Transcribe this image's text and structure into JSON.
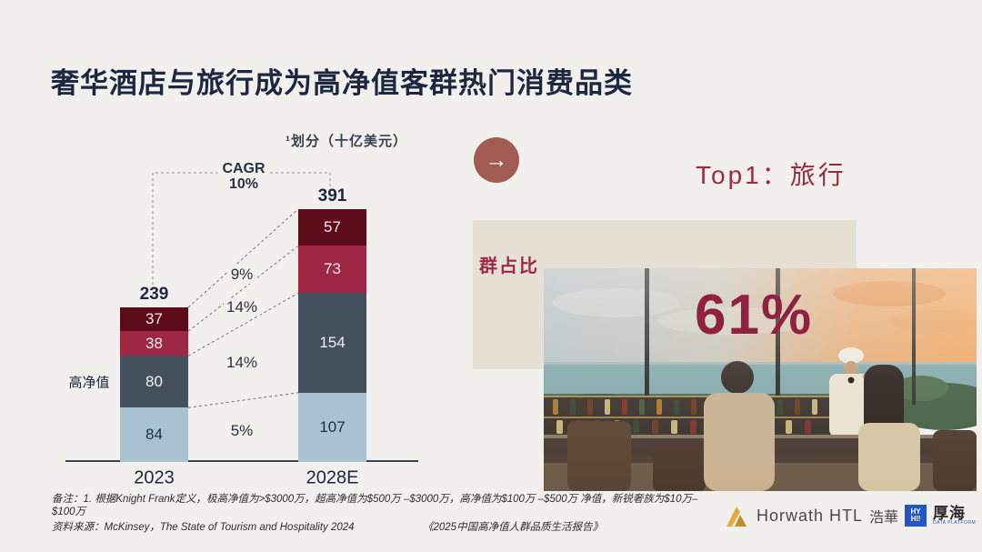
{
  "slide": {
    "title": "奢华酒店与旅行成为高净值客群热门消费品类"
  },
  "chart_data": {
    "type": "bar",
    "stacked": true,
    "subtitle": "¹划分（十亿美元）",
    "categories": [
      "2023",
      "2028E"
    ],
    "bar_totals": [
      "239",
      "391"
    ],
    "segments": [
      {
        "position": "top",
        "values": [
          37,
          57
        ],
        "color": "#5d0c1a",
        "text_color": "#f3e8e8"
      },
      {
        "position": "second",
        "values": [
          38,
          73
        ],
        "color": "#9e2746",
        "text_color": "#f6e9ec"
      },
      {
        "position": "third",
        "values": [
          80,
          154
        ],
        "color": "#45505f",
        "text_color": "#eef1f5"
      },
      {
        "position": "bottom",
        "values": [
          84,
          107
        ],
        "color": "#a8c2d1",
        "text_color": "#23303f"
      }
    ],
    "cagr": {
      "label": "CAGR",
      "overall": "10%",
      "per_segment": [
        "9%",
        "14%",
        "14%",
        "5%"
      ]
    },
    "side_label": "高净值",
    "ylim": [
      0,
      400
    ],
    "grid": false,
    "legend": "none"
  },
  "right_panel": {
    "arrow_icon": "→",
    "heading": "Top1：旅行",
    "metric_label": "群占比",
    "metric_value": "61%"
  },
  "footer": {
    "note_line1": "备注：1. 根据Knight Frank定义，极高净值为>$3000万，超高净值为$500万 –$3000万，高净值为$100万 –$500万 净值，新锐奢族为$10万–",
    "note_line2": "$100万",
    "source": "资料来源：McKinsey，The State of Tourism and Hospitality 2024",
    "report": "《2025中国高净值人群品质生活报告》",
    "logos": {
      "horwath": "Horwath HTL",
      "horwath_cn": "浩華",
      "square_line1": "HY",
      "square_line2": "HI!",
      "houhai_cn": "厚海",
      "houhai_sub": "DATA PLATFORM"
    }
  }
}
